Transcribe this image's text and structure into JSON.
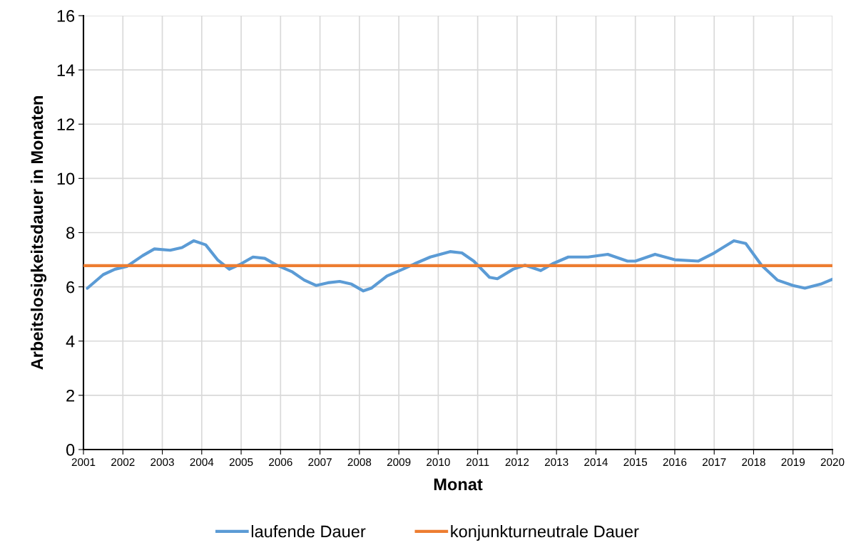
{
  "chart_data": {
    "type": "line",
    "xlabel": "Monat",
    "ylabel": "Arbeitslosigkeitsdauer in Monaten",
    "xlim": [
      2001,
      2020
    ],
    "xticks": [
      2001,
      2002,
      2003,
      2004,
      2005,
      2006,
      2007,
      2008,
      2009,
      2010,
      2011,
      2012,
      2013,
      2014,
      2015,
      2016,
      2017,
      2018,
      2019,
      2020
    ],
    "ylim": [
      0,
      16
    ],
    "yticks": [
      0,
      2,
      4,
      6,
      8,
      10,
      12,
      14,
      16
    ],
    "grid": true,
    "legend": "bottom",
    "marker": "none",
    "line_style": "solid",
    "series": [
      {
        "name": "laufende Dauer",
        "color": "#5b9bd5",
        "x": [
          2001.1,
          2001.5,
          2001.8,
          2002.1,
          2002.5,
          2002.8,
          2003.2,
          2003.5,
          2003.8,
          2004.1,
          2004.4,
          2004.7,
          2005.0,
          2005.3,
          2005.6,
          2005.9,
          2006.3,
          2006.6,
          2006.9,
          2007.2,
          2007.5,
          2007.8,
          2008.1,
          2008.3,
          2008.7,
          2009.1,
          2009.4,
          2009.8,
          2010.3,
          2010.6,
          2010.9,
          2011.3,
          2011.5,
          2011.9,
          2012.2,
          2012.6,
          2012.9,
          2013.3,
          2013.8,
          2014.3,
          2014.8,
          2015.0,
          2015.5,
          2016.0,
          2016.6,
          2017.0,
          2017.5,
          2017.8,
          2018.2,
          2018.6,
          2019.0,
          2019.3,
          2019.7,
          2020.0
        ],
        "values": [
          5.95,
          6.45,
          6.65,
          6.75,
          7.15,
          7.4,
          7.35,
          7.45,
          7.7,
          7.55,
          7.0,
          6.65,
          6.85,
          7.1,
          7.05,
          6.8,
          6.55,
          6.25,
          6.05,
          6.15,
          6.2,
          6.1,
          5.85,
          5.95,
          6.4,
          6.65,
          6.85,
          7.1,
          7.3,
          7.25,
          6.95,
          6.35,
          6.3,
          6.65,
          6.8,
          6.6,
          6.85,
          7.1,
          7.1,
          7.2,
          6.95,
          6.95,
          7.2,
          7.0,
          6.95,
          7.25,
          7.7,
          7.6,
          6.8,
          6.25,
          6.05,
          5.95,
          6.1,
          6.28
        ]
      },
      {
        "name": "konjunkturneutrale Dauer",
        "color": "#ed7d31",
        "x": [
          2001.0,
          2020.0
        ],
        "values": [
          6.78,
          6.78
        ]
      }
    ]
  }
}
